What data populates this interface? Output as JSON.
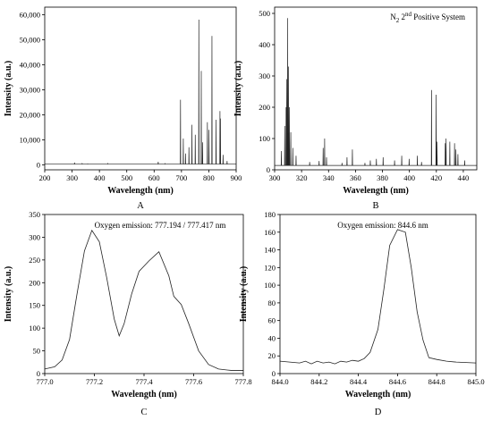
{
  "chart_data": [
    {
      "type": "line",
      "panel_label": "A",
      "xlabel": "Wavelength (nm)",
      "ylabel": "Intensity (a.u.)",
      "xlim": [
        200,
        900
      ],
      "ylim": [
        -2000,
        63000
      ],
      "xticks": [
        200,
        300,
        400,
        500,
        600,
        700,
        800,
        900
      ],
      "yticks": [
        0,
        10000,
        20000,
        30000,
        40000,
        50000,
        60000
      ],
      "xtick_labels": [
        "200",
        "300",
        "400",
        "500",
        "600",
        "700",
        "800",
        "900"
      ],
      "ytick_labels": [
        "0",
        "10,000",
        "20,000",
        "30,000",
        "40,000",
        "50,000",
        "60,000"
      ],
      "baseline": 300,
      "peaks": [
        {
          "x": 309,
          "y": 900
        },
        {
          "x": 337,
          "y": 500
        },
        {
          "x": 357,
          "y": 400
        },
        {
          "x": 430,
          "y": 500
        },
        {
          "x": 615,
          "y": 1200
        },
        {
          "x": 640,
          "y": 600
        },
        {
          "x": 696.5,
          "y": 26000
        },
        {
          "x": 706.7,
          "y": 10500
        },
        {
          "x": 714.7,
          "y": 4500
        },
        {
          "x": 727.3,
          "y": 7000
        },
        {
          "x": 738.4,
          "y": 16000
        },
        {
          "x": 750.4,
          "y": 12000
        },
        {
          "x": 763.5,
          "y": 58000
        },
        {
          "x": 772.4,
          "y": 37500
        },
        {
          "x": 777.3,
          "y": 9000
        },
        {
          "x": 794.8,
          "y": 17000
        },
        {
          "x": 800.6,
          "y": 14000
        },
        {
          "x": 811.5,
          "y": 51500
        },
        {
          "x": 826.5,
          "y": 18000
        },
        {
          "x": 840.8,
          "y": 21500
        },
        {
          "x": 842.5,
          "y": 18500
        },
        {
          "x": 852.1,
          "y": 4000
        },
        {
          "x": 866.8,
          "y": 1500
        }
      ]
    },
    {
      "type": "line",
      "panel_label": "B",
      "xlabel": "Wavelength (nm)",
      "ylabel": "Intensity (a.u.)",
      "annotation": {
        "prefix": "N",
        "sub": "2",
        "mid": " 2",
        "sup": "nd",
        "suffix": " Positive System"
      },
      "xlim": [
        300,
        450
      ],
      "ylim": [
        0,
        520
      ],
      "xticks": [
        300,
        320,
        340,
        360,
        380,
        400,
        420,
        440
      ],
      "yticks": [
        0,
        100,
        200,
        300,
        400,
        500
      ],
      "xtick_labels": [
        "300",
        "320",
        "340",
        "360",
        "380",
        "400",
        "420",
        "440"
      ],
      "ytick_labels": [
        "0",
        "100",
        "200",
        "300",
        "400",
        "500"
      ],
      "baseline": 14,
      "peaks": [
        {
          "x": 305,
          "y": 60
        },
        {
          "x": 307.5,
          "y": 140
        },
        {
          "x": 308.5,
          "y": 200
        },
        {
          "x": 309.0,
          "y": 290
        },
        {
          "x": 309.6,
          "y": 485
        },
        {
          "x": 310.3,
          "y": 330
        },
        {
          "x": 311.0,
          "y": 200
        },
        {
          "x": 312.0,
          "y": 120
        },
        {
          "x": 313.5,
          "y": 70
        },
        {
          "x": 315.9,
          "y": 45
        },
        {
          "x": 326,
          "y": 25
        },
        {
          "x": 333,
          "y": 28
        },
        {
          "x": 336.0,
          "y": 70
        },
        {
          "x": 337.1,
          "y": 100
        },
        {
          "x": 338.5,
          "y": 40
        },
        {
          "x": 350,
          "y": 22
        },
        {
          "x": 353.7,
          "y": 40
        },
        {
          "x": 357.7,
          "y": 65
        },
        {
          "x": 367,
          "y": 22
        },
        {
          "x": 371,
          "y": 30
        },
        {
          "x": 375.5,
          "y": 35
        },
        {
          "x": 380.5,
          "y": 40
        },
        {
          "x": 389,
          "y": 30
        },
        {
          "x": 394.3,
          "y": 45
        },
        {
          "x": 399.8,
          "y": 35
        },
        {
          "x": 405.9,
          "y": 45
        },
        {
          "x": 409,
          "y": 25
        },
        {
          "x": 416.4,
          "y": 255
        },
        {
          "x": 419.8,
          "y": 240
        },
        {
          "x": 420.5,
          "y": 90
        },
        {
          "x": 426.6,
          "y": 85
        },
        {
          "x": 427.2,
          "y": 100
        },
        {
          "x": 430.0,
          "y": 90
        },
        {
          "x": 433.5,
          "y": 85
        },
        {
          "x": 434.5,
          "y": 65
        },
        {
          "x": 436.0,
          "y": 50
        },
        {
          "x": 441.0,
          "y": 30
        }
      ]
    },
    {
      "type": "line",
      "panel_label": "C",
      "xlabel": "Wavelength (nm)",
      "ylabel": "Intensity (a.u.)",
      "annotation": "Oxygen emission: 777.194 / 777.417 nm",
      "xlim": [
        777.0,
        777.8
      ],
      "ylim": [
        0,
        350
      ],
      "xticks": [
        777.0,
        777.2,
        777.4,
        777.6,
        777.8
      ],
      "yticks": [
        0,
        50,
        100,
        150,
        200,
        250,
        300,
        350
      ],
      "xtick_labels": [
        "777.0",
        "777.2",
        "777.4",
        "777.6",
        "777.8"
      ],
      "ytick_labels": [
        "0",
        "50",
        "100",
        "150",
        "200",
        "250",
        "300",
        "350"
      ],
      "points": [
        [
          777.0,
          10
        ],
        [
          777.04,
          15
        ],
        [
          777.07,
          30
        ],
        [
          777.1,
          75
        ],
        [
          777.13,
          175
        ],
        [
          777.16,
          270
        ],
        [
          777.19,
          315
        ],
        [
          777.22,
          290
        ],
        [
          777.25,
          210
        ],
        [
          777.28,
          120
        ],
        [
          777.3,
          83
        ],
        [
          777.32,
          110
        ],
        [
          777.35,
          175
        ],
        [
          777.38,
          225
        ],
        [
          777.42,
          248
        ],
        [
          777.46,
          268
        ],
        [
          777.5,
          215
        ],
        [
          777.52,
          170
        ],
        [
          777.55,
          152
        ],
        [
          777.58,
          110
        ],
        [
          777.62,
          50
        ],
        [
          777.66,
          20
        ],
        [
          777.7,
          10
        ],
        [
          777.75,
          7
        ],
        [
          777.8,
          7
        ]
      ]
    },
    {
      "type": "line",
      "panel_label": "D",
      "xlabel": "Wavelength (nm)",
      "ylabel": "Intensity (a.u.)",
      "annotation": "Oxygen emission: 844.6 nm",
      "xlim": [
        844.0,
        845.0
      ],
      "ylim": [
        0,
        180
      ],
      "xticks": [
        844.0,
        844.2,
        844.4,
        844.6,
        844.8,
        845.0
      ],
      "yticks": [
        0,
        20,
        40,
        60,
        80,
        100,
        120,
        140,
        160,
        180
      ],
      "xtick_labels": [
        "844.0",
        "844.2",
        "844.4",
        "844.6",
        "844.8",
        "845.0"
      ],
      "ytick_labels": [
        "0",
        "20",
        "40",
        "60",
        "80",
        "100",
        "120",
        "140",
        "160",
        "180"
      ],
      "points": [
        [
          844.0,
          14
        ],
        [
          844.05,
          13
        ],
        [
          844.1,
          12
        ],
        [
          844.13,
          14
        ],
        [
          844.16,
          11
        ],
        [
          844.19,
          14
        ],
        [
          844.22,
          12
        ],
        [
          844.25,
          13
        ],
        [
          844.28,
          11
        ],
        [
          844.31,
          14
        ],
        [
          844.34,
          13
        ],
        [
          844.37,
          15
        ],
        [
          844.4,
          14
        ],
        [
          844.43,
          17
        ],
        [
          844.46,
          24
        ],
        [
          844.5,
          50
        ],
        [
          844.53,
          95
        ],
        [
          844.56,
          145
        ],
        [
          844.6,
          163
        ],
        [
          844.64,
          160
        ],
        [
          844.67,
          120
        ],
        [
          844.7,
          70
        ],
        [
          844.73,
          38
        ],
        [
          844.76,
          18
        ],
        [
          844.8,
          16
        ],
        [
          844.85,
          14
        ],
        [
          844.9,
          13
        ],
        [
          845.0,
          12
        ]
      ]
    }
  ]
}
